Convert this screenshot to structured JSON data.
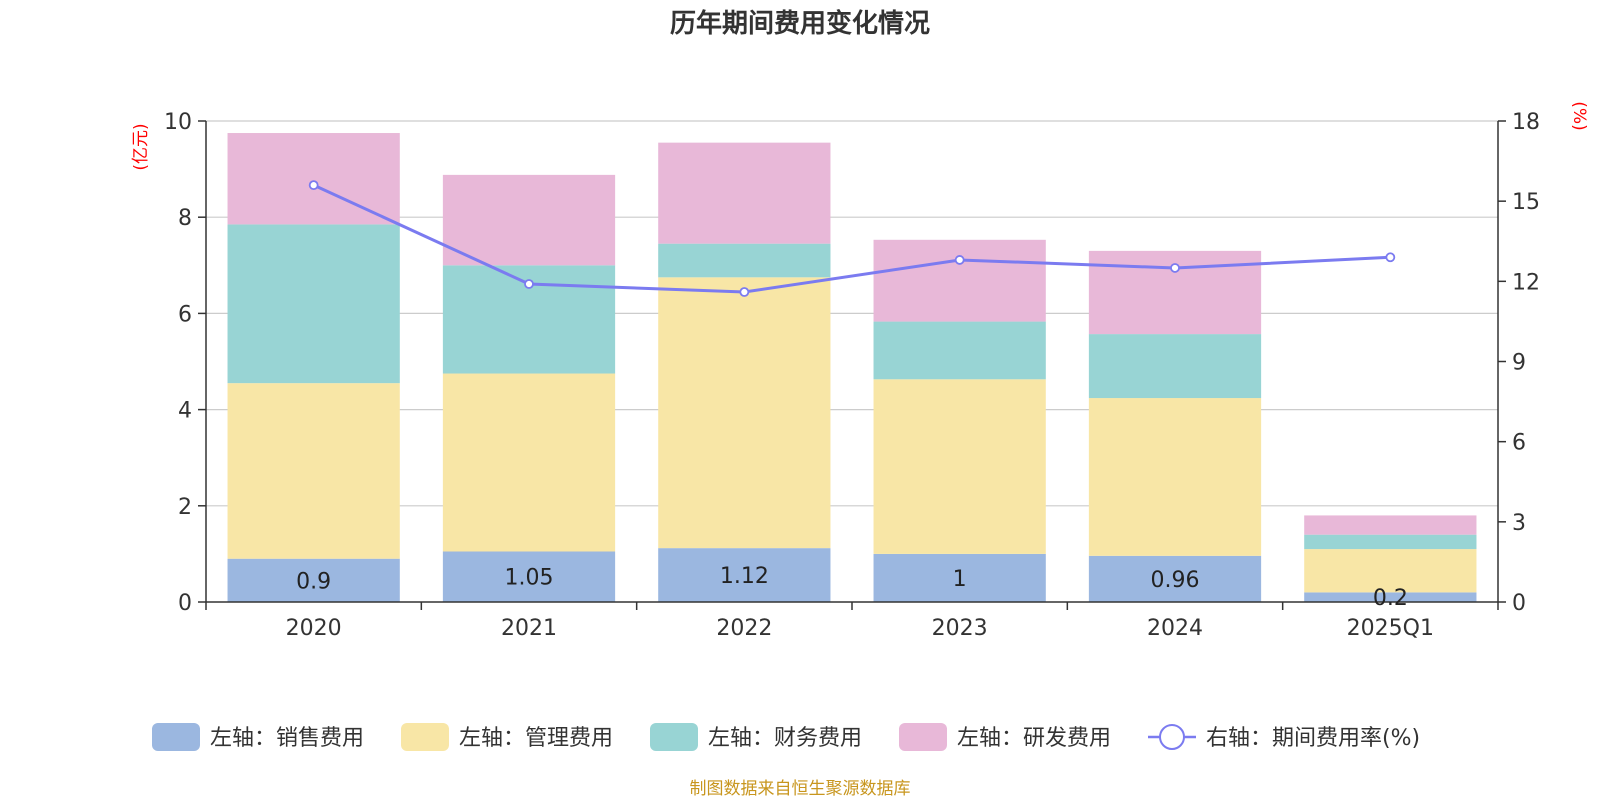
{
  "chart_data": {
    "type": "bar",
    "title": "历年期间费用变化情况",
    "categories": [
      "2020",
      "2021",
      "2022",
      "2023",
      "2024",
      "2025Q1"
    ],
    "left_axis": {
      "unit": "(亿元)",
      "ylim": [
        0,
        10
      ],
      "ticks": [
        "0",
        "2",
        "4",
        "6",
        "8",
        "10"
      ]
    },
    "right_axis": {
      "unit": "(%)",
      "ylim": [
        0,
        18
      ],
      "ticks": [
        "0",
        "3",
        "6",
        "9",
        "12",
        "15",
        "18"
      ]
    },
    "series": [
      {
        "name": "左轴：销售费用",
        "color": "#9bb7e0",
        "values": [
          0.9,
          1.05,
          1.12,
          1.0,
          0.96,
          0.2
        ],
        "labels": [
          "0.9",
          "1.05",
          "1.12",
          "1",
          "0.96",
          "0.2"
        ]
      },
      {
        "name": "左轴：管理费用",
        "color": "#f8e6a6",
        "values": [
          3.65,
          3.7,
          5.63,
          3.63,
          3.28,
          0.9
        ]
      },
      {
        "name": "左轴：财务费用",
        "color": "#98d4d4",
        "values": [
          3.3,
          2.25,
          0.7,
          1.2,
          1.33,
          0.3
        ]
      },
      {
        "name": "左轴：研发费用",
        "color": "#e8b8d8",
        "values": [
          1.9,
          1.88,
          2.1,
          1.7,
          1.73,
          0.4
        ]
      }
    ],
    "line": {
      "name": "右轴：期间费用率(%)",
      "color": "#7b7bf0",
      "values": [
        15.6,
        11.9,
        11.6,
        12.8,
        12.5,
        12.9
      ]
    },
    "grid": true,
    "legend_position": "bottom"
  },
  "source_note": "制图数据来自恒生聚源数据库"
}
